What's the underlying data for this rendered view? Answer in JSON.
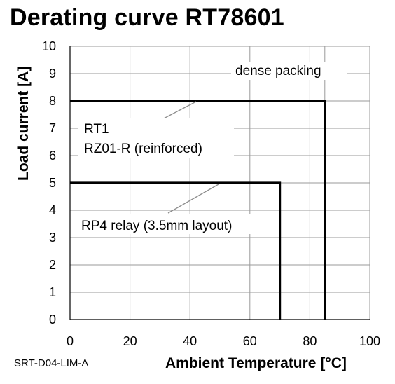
{
  "title": "Derating curve RT78601",
  "footer_code": "SRT-D04-LIM-A",
  "colors": {
    "grid": "#9a9a9a",
    "curve": "#000000",
    "leader": "#8c8c8c"
  },
  "chart_data": {
    "type": "line",
    "title": "Derating curve RT78601",
    "xlabel": "Ambient Temperature [°C]",
    "ylabel": "Load current [A]",
    "xlim": [
      0,
      100
    ],
    "ylim": [
      0,
      10
    ],
    "xticks": [
      0,
      20,
      40,
      60,
      80,
      100
    ],
    "yticks": [
      0,
      1,
      2,
      3,
      4,
      5,
      6,
      7,
      8,
      9,
      10
    ],
    "extra_vgrid": [
      85
    ],
    "grid": true,
    "series": [
      {
        "id": "upper",
        "values": [
          [
            0,
            8
          ],
          [
            85,
            8
          ],
          [
            85,
            0
          ]
        ]
      },
      {
        "id": "lower",
        "values": [
          [
            0,
            5
          ],
          [
            70,
            5
          ],
          [
            70,
            0
          ]
        ]
      }
    ],
    "annotations": [
      {
        "id": "dense",
        "text": "dense packing"
      },
      {
        "id": "rt1",
        "text": "RT1"
      },
      {
        "id": "rz01",
        "text": "RZ01-R (reinforced)"
      },
      {
        "id": "rp4",
        "text": "RP4 relay (3.5mm layout)"
      }
    ]
  }
}
